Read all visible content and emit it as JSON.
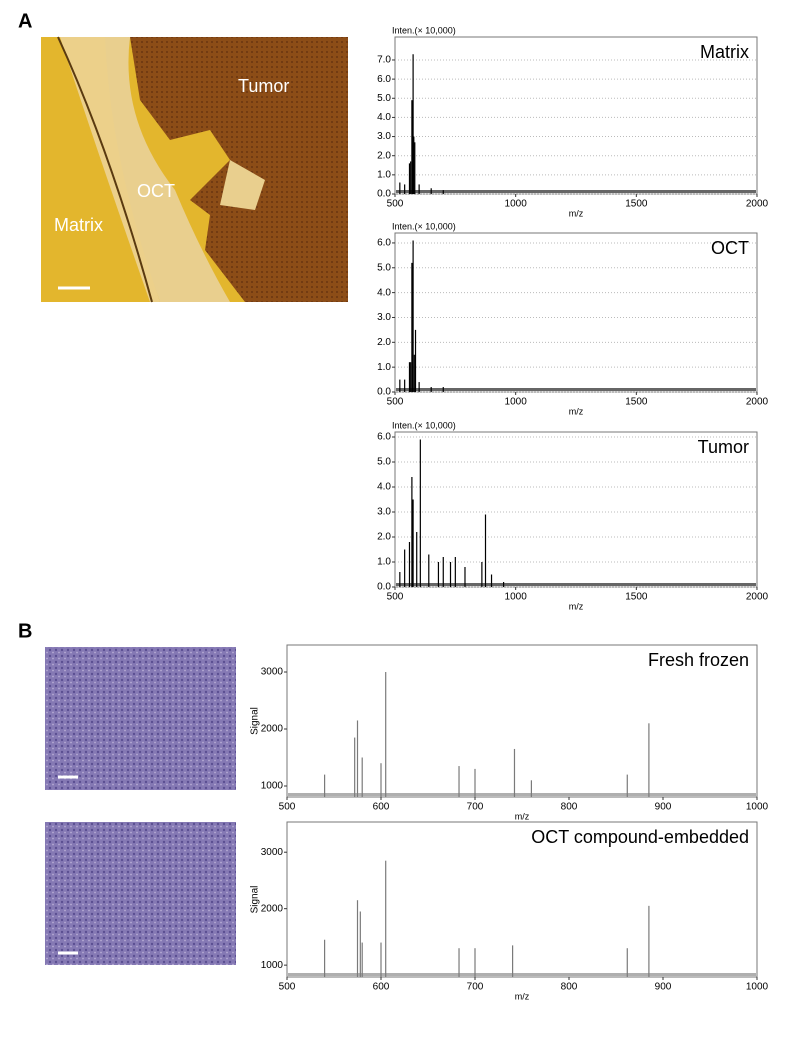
{
  "panel_labels": [
    "A",
    "B"
  ],
  "image_labels": [
    "Tumor",
    "OCT",
    "Matrix"
  ],
  "chart_data": [
    {
      "type": "stem",
      "annotation": "Matrix",
      "ylabel": "Inten.(× 10,000)",
      "xlabel": "m/z",
      "x": [
        520,
        540,
        560,
        565,
        570,
        575,
        578,
        582,
        600,
        650,
        700
      ],
      "series": [
        {
          "color": "#000000",
          "values": [
            0.6,
            0.5,
            1.6,
            1.7,
            4.9,
            7.3,
            3.0,
            2.7,
            0.5,
            0.3,
            0.2
          ]
        }
      ],
      "xlim": [
        500,
        2000
      ],
      "xticks": [
        500,
        1000,
        1500,
        2000
      ],
      "ylim": [
        0,
        8.2
      ],
      "yticks": [
        {
          "value": 0,
          "label": "0.0"
        },
        {
          "value": 1,
          "label": "1.0"
        },
        {
          "value": 2,
          "label": "2.0"
        },
        {
          "value": 3,
          "label": "3.0"
        },
        {
          "value": 4,
          "label": "4.0"
        },
        {
          "value": 5,
          "label": "5.0"
        },
        {
          "value": 6,
          "label": "6.0"
        },
        {
          "value": 7,
          "label": "7.0"
        }
      ],
      "grid": true
    },
    {
      "type": "stem",
      "annotation": "OCT",
      "ylabel": "Inten.(× 10,000)",
      "xlabel": "m/z",
      "x": [
        520,
        540,
        560,
        565,
        570,
        575,
        580,
        585,
        600,
        650,
        700
      ],
      "series": [
        {
          "color": "#000000",
          "values": [
            0.5,
            0.5,
            1.2,
            1.2,
            5.2,
            6.1,
            1.5,
            2.5,
            0.4,
            0.2,
            0.2
          ]
        }
      ],
      "xlim": [
        500,
        2000
      ],
      "xticks": [
        500,
        1000,
        1500,
        2000
      ],
      "ylim": [
        0,
        6.4
      ],
      "yticks": [
        {
          "value": 0,
          "label": "0.0"
        },
        {
          "value": 1,
          "label": "1.0"
        },
        {
          "value": 2,
          "label": "2.0"
        },
        {
          "value": 3,
          "label": "3.0"
        },
        {
          "value": 4,
          "label": "4.0"
        },
        {
          "value": 5,
          "label": "5.0"
        },
        {
          "value": 6,
          "label": "6.0"
        }
      ],
      "grid": true
    },
    {
      "type": "stem",
      "annotation": "Tumor",
      "ylabel": "Inten.(× 10,000)",
      "xlabel": "m/z",
      "x": [
        520,
        540,
        560,
        570,
        575,
        590,
        605,
        640,
        680,
        700,
        730,
        750,
        790,
        860,
        875,
        900,
        950
      ],
      "series": [
        {
          "color": "#000000",
          "values": [
            0.6,
            1.5,
            1.8,
            4.4,
            3.5,
            2.2,
            5.9,
            1.3,
            1.0,
            1.2,
            1.0,
            1.2,
            0.8,
            1.0,
            2.9,
            0.5,
            0.2
          ]
        }
      ],
      "xlim": [
        500,
        2000
      ],
      "xticks": [
        500,
        1000,
        1500,
        2000
      ],
      "ylim": [
        0,
        6.2
      ],
      "yticks": [
        {
          "value": 0,
          "label": "0.0"
        },
        {
          "value": 1,
          "label": "1.0"
        },
        {
          "value": 2,
          "label": "2.0"
        },
        {
          "value": 3,
          "label": "3.0"
        },
        {
          "value": 4,
          "label": "4.0"
        },
        {
          "value": 5,
          "label": "5.0"
        },
        {
          "value": 6,
          "label": "6.0"
        }
      ],
      "grid": true
    },
    {
      "type": "stem",
      "annotation": "Fresh frozen",
      "ylabel": "Signal",
      "xlabel": "m/z",
      "x": [
        540,
        572,
        575,
        580,
        600,
        605,
        683,
        700,
        742,
        760,
        862,
        885
      ],
      "series": [
        {
          "color": "#7a7a7a",
          "values": [
            1200,
            1850,
            2150,
            1500,
            1400,
            3000,
            1350,
            1300,
            1650,
            1100,
            1200,
            2100
          ]
        }
      ],
      "xlim": [
        500,
        1000
      ],
      "xticks": [
        500,
        600,
        700,
        800,
        900,
        1000
      ],
      "ylim": [
        807,
        3474
      ],
      "yticks": [
        1000,
        2000,
        3000
      ],
      "grid": false
    },
    {
      "type": "stem",
      "annotation": "OCT compound-embedded",
      "ylabel": "Signal",
      "xlabel": "m/z",
      "x": [
        540,
        575,
        578,
        580,
        600,
        605,
        683,
        700,
        740,
        862,
        885
      ],
      "series": [
        {
          "color": "#7a7a7a",
          "values": [
            1450,
            2150,
            1950,
            1400,
            1400,
            2850,
            1300,
            1300,
            1350,
            1300,
            2050
          ]
        }
      ],
      "xlim": [
        500,
        1000
      ],
      "xticks": [
        500,
        600,
        700,
        800,
        900,
        1000
      ],
      "ylim": [
        790,
        3535
      ],
      "yticks": [
        1000,
        2000,
        3000
      ],
      "grid": false
    }
  ]
}
